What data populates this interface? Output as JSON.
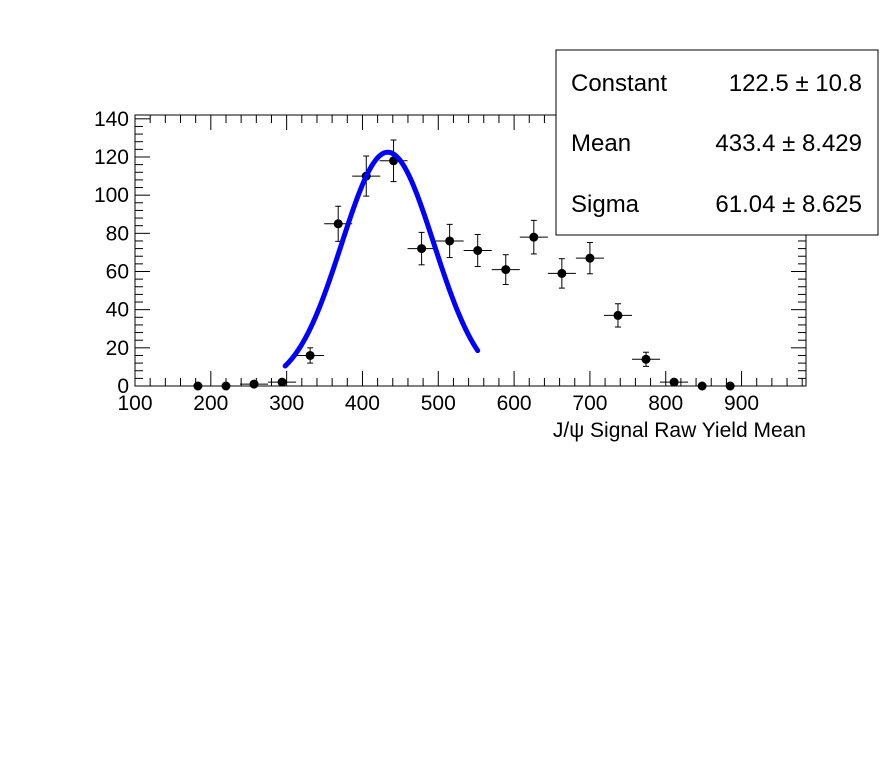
{
  "chart_data": {
    "type": "scatter",
    "title": "",
    "xlabel": "J/ψ Signal Raw Yield Mean",
    "ylabel": "",
    "xlim": [
      100,
      985
    ],
    "ylim": [
      0,
      142
    ],
    "x_ticks": [
      100,
      200,
      300,
      400,
      500,
      600,
      700,
      800,
      900
    ],
    "y_ticks": [
      0,
      20,
      40,
      60,
      80,
      100,
      120,
      140
    ],
    "grid": false,
    "legend": "none",
    "series": [
      {
        "x": [
          183,
          220,
          257,
          294,
          331,
          368,
          405,
          441,
          478,
          515,
          552,
          589,
          626,
          663,
          700,
          737,
          774,
          811,
          848,
          885
        ],
        "values": [
          0,
          0,
          1,
          2,
          16,
          85,
          110,
          118,
          72,
          76,
          71,
          61,
          78,
          59,
          67,
          37,
          14,
          2,
          0,
          0
        ],
        "y_err": [
          0,
          0,
          1,
          1.4,
          4,
          9.2,
          10.5,
          10.9,
          8.5,
          8.7,
          8.4,
          7.8,
          8.8,
          7.7,
          8.2,
          6.1,
          3.7,
          1.4,
          0,
          0
        ],
        "x_err": 18.5,
        "color": "#000000"
      }
    ],
    "fit": {
      "function": "gaus",
      "color": "#0000ff",
      "range": [
        298,
        552
      ],
      "stats": [
        {
          "name": "Constant",
          "value": "122.5",
          "error": "10.8"
        },
        {
          "name": "Mean",
          "value": "433.4",
          "error": "8.429"
        },
        {
          "name": "Sigma",
          "value": "61.04",
          "error": "8.625"
        }
      ],
      "pm_symbol": "±"
    }
  }
}
